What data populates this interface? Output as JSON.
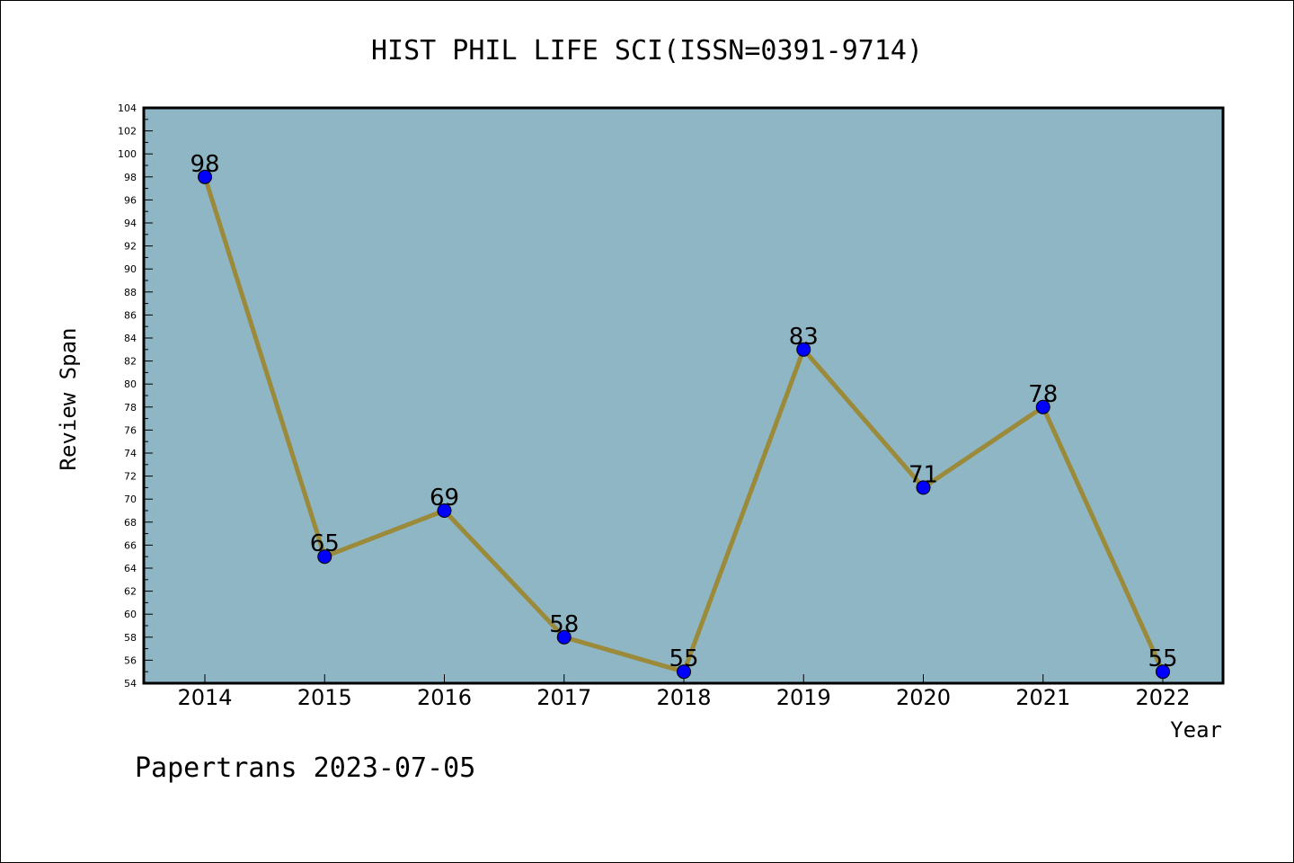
{
  "chart_data": {
    "type": "line",
    "title": "HIST PHIL LIFE SCI(ISSN=0391-9714)",
    "xlabel": "Year",
    "ylabel": "Review Span",
    "categories": [
      "2014",
      "2015",
      "2016",
      "2017",
      "2018",
      "2019",
      "2020",
      "2021",
      "2022"
    ],
    "series": [
      {
        "values": [
          98,
          65,
          69,
          58,
          55,
          83,
          71,
          78,
          55
        ],
        "data_labels": [
          "98",
          "65",
          "69",
          "58",
          "55",
          "83",
          "71",
          "78",
          "55"
        ]
      }
    ],
    "ylim": [
      54,
      104
    ],
    "ytick_step": 2,
    "grid": false,
    "legend": "none",
    "colors": {
      "plot_background": "#8fb6c4",
      "line": "#9a8a3a",
      "marker": "#0000ff",
      "frame": "#000000"
    }
  },
  "footer": {
    "text": "Papertrans 2023-07-05"
  }
}
